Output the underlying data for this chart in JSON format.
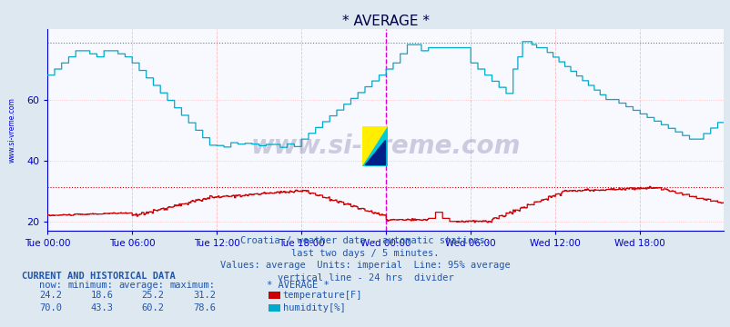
{
  "title": "* AVERAGE *",
  "background_color": "#dde8f0",
  "plot_bg_color": "#f8f8ff",
  "subtitle_lines": [
    "Croatia / weather data - automatic stations.",
    "last two days / 5 minutes.",
    "Values: average  Units: imperial  Line: 95% average",
    "vertical line - 24 hrs  divider"
  ],
  "xlabel_ticks": [
    "Tue 00:00",
    "Tue 06:00",
    "Tue 12:00",
    "Tue 18:00",
    "Wed 00:00",
    "Wed 06:00",
    "Wed 12:00",
    "Wed 18:00"
  ],
  "xlabel_tick_positions": [
    0,
    72,
    144,
    216,
    288,
    360,
    432,
    504
  ],
  "total_points": 576,
  "ylim": [
    17,
    83
  ],
  "yticks": [
    20,
    40,
    60
  ],
  "temp_color": "#cc0000",
  "humidity_color": "#00aacc",
  "grid_color_v": "#ffbbbb",
  "grid_color_h": "#ffbbbb",
  "avg_line_temp": 31.2,
  "avg_line_humidity": 78.6,
  "divider_x": 288,
  "divider_color": "#dd00dd",
  "watermark": "www.si-vreme.com",
  "watermark_color": "#000055",
  "watermark_alpha": 0.18,
  "axis_color": "#0000cc",
  "tick_color": "#0000cc",
  "ylabel_left": "www.si-vreme.com",
  "title_color": "#000044",
  "subtitle_color": "#2255aa",
  "table_header_color": "#2255aa",
  "current_and_historical": "CURRENT AND HISTORICAL DATA",
  "col_headers": [
    "now:",
    "minimum:",
    "average:",
    "maximum:",
    "* AVERAGE *"
  ],
  "temp_now": 24.2,
  "temp_min": 18.6,
  "temp_avg": 25.2,
  "temp_max": 31.2,
  "temp_label": "temperature[F]",
  "temp_swatch": "#cc0000",
  "hum_now": 70.0,
  "hum_min": 43.3,
  "hum_avg": 60.2,
  "hum_max": 78.6,
  "hum_label": "humidity[%]",
  "hum_swatch": "#00aacc"
}
